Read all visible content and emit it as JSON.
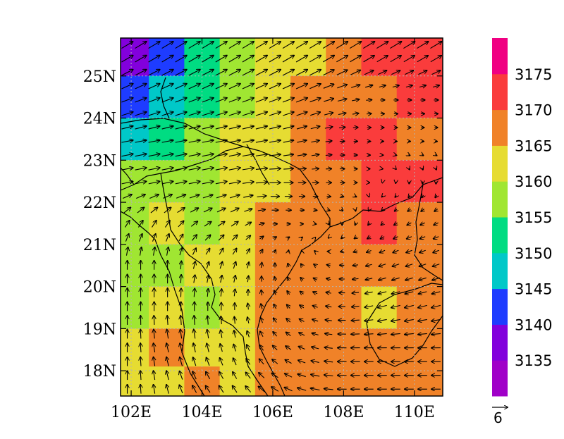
{
  "chart_data": {
    "type": "heatmap",
    "title": "",
    "xlabel": "",
    "ylabel": "",
    "xlim": [
      101.7,
      110.8
    ],
    "ylim": [
      17.4,
      25.9
    ],
    "x_ticks": [
      102,
      104,
      106,
      108,
      110
    ],
    "x_tick_labels": [
      "102E",
      "104E",
      "106E",
      "108E",
      "110E"
    ],
    "y_ticks": [
      18,
      19,
      20,
      21,
      22,
      23,
      24,
      25
    ],
    "y_tick_labels": [
      "18N",
      "19N",
      "20N",
      "21N",
      "22N",
      "23N",
      "24N",
      "25N"
    ],
    "grid": "dotted",
    "colorbar": {
      "placement": "right",
      "levels": [
        3135,
        3140,
        3145,
        3150,
        3155,
        3160,
        3165,
        3170,
        3175
      ],
      "level_labels": [
        "3135",
        "3140",
        "3145",
        "3150",
        "3155",
        "3160",
        "3165",
        "3170",
        "3175"
      ],
      "colors": [
        "#a000c8",
        "#8200dc",
        "#1e3cff",
        "#00c8c8",
        "#00dc82",
        "#a0e632",
        "#e6dc32",
        "#f08228",
        "#fa3c3c",
        "#f00082"
      ]
    },
    "vector_reference": {
      "value": 6,
      "label": "6"
    },
    "field": {
      "x": [
        102,
        103,
        104,
        105,
        106,
        107,
        108,
        109,
        110
      ],
      "y": [
        25.5,
        24.5,
        23.5,
        22.5,
        21.5,
        20.5,
        19.5,
        18.5,
        17.7
      ],
      "values": [
        [
          3136,
          3143,
          3150,
          3157,
          3162,
          3164,
          3168,
          3171,
          3172
        ],
        [
          3140,
          3145,
          3153,
          3159,
          3163,
          3165,
          3167,
          3169,
          3171
        ],
        [
          3146,
          3151,
          3155,
          3161,
          3163,
          3166,
          3170,
          3171,
          3168
        ],
        [
          3157,
          3159,
          3157,
          3161,
          3162,
          3166,
          3168,
          3171,
          3171
        ],
        [
          3158,
          3160,
          3157,
          3162,
          3166,
          3166,
          3167,
          3171,
          3168
        ],
        [
          3159,
          3158,
          3160,
          3163,
          3165,
          3166,
          3167,
          3168,
          3166
        ],
        [
          3155,
          3160,
          3158,
          3162,
          3166,
          3166,
          3166,
          3163,
          3166
        ],
        [
          3160,
          3165,
          3163,
          3162,
          3166,
          3166,
          3166,
          3165,
          3166
        ],
        [
          3160,
          3163,
          3165,
          3163,
          3166,
          3166,
          3166,
          3166,
          3166
        ]
      ]
    },
    "wind": {
      "x": [
        102,
        103,
        104,
        105,
        106,
        107,
        108,
        109,
        110
      ],
      "y": [
        25.5,
        24.5,
        23.5,
        22.5,
        21.5,
        20.5,
        19.5,
        18.5,
        17.7
      ],
      "u": [
        [
          5,
          5,
          5,
          5,
          5,
          5,
          5,
          5,
          5
        ],
        [
          5,
          5,
          5,
          5,
          5,
          5,
          4,
          2,
          2
        ],
        [
          5,
          5,
          5,
          5,
          5,
          4,
          2,
          1,
          1
        ],
        [
          5,
          5,
          5,
          5,
          5,
          3,
          2,
          0,
          0
        ],
        [
          2,
          2,
          3,
          3,
          2,
          1,
          0,
          -1,
          -2
        ],
        [
          0,
          0,
          1,
          1,
          0,
          -1,
          -2,
          -3,
          -3
        ],
        [
          0,
          0,
          0,
          0,
          -1,
          -2,
          -3,
          -4,
          -4
        ],
        [
          0,
          -1,
          -1,
          -1,
          -2,
          -3,
          -4,
          -4,
          -4
        ],
        [
          0,
          -1,
          -2,
          -2,
          -3,
          -4,
          -4,
          -4,
          -4
        ]
      ],
      "v": [
        [
          3,
          3,
          3,
          3,
          3,
          3,
          3,
          3,
          3
        ],
        [
          2,
          2,
          2,
          2,
          2,
          2,
          1,
          0,
          0
        ],
        [
          1,
          1,
          1,
          1,
          1,
          1,
          0,
          0,
          0
        ],
        [
          1,
          1,
          1,
          1,
          0,
          0,
          0,
          0,
          -1
        ],
        [
          3,
          3,
          2,
          2,
          0,
          0,
          -1,
          -1,
          -1
        ],
        [
          4,
          4,
          3,
          3,
          2,
          1,
          0,
          -1,
          -1
        ],
        [
          4,
          4,
          4,
          3,
          2,
          1,
          0,
          -1,
          -1
        ],
        [
          4,
          4,
          4,
          3,
          2,
          1,
          0,
          0,
          0
        ],
        [
          4,
          4,
          3,
          3,
          2,
          1,
          0,
          0,
          0
        ]
      ]
    }
  }
}
